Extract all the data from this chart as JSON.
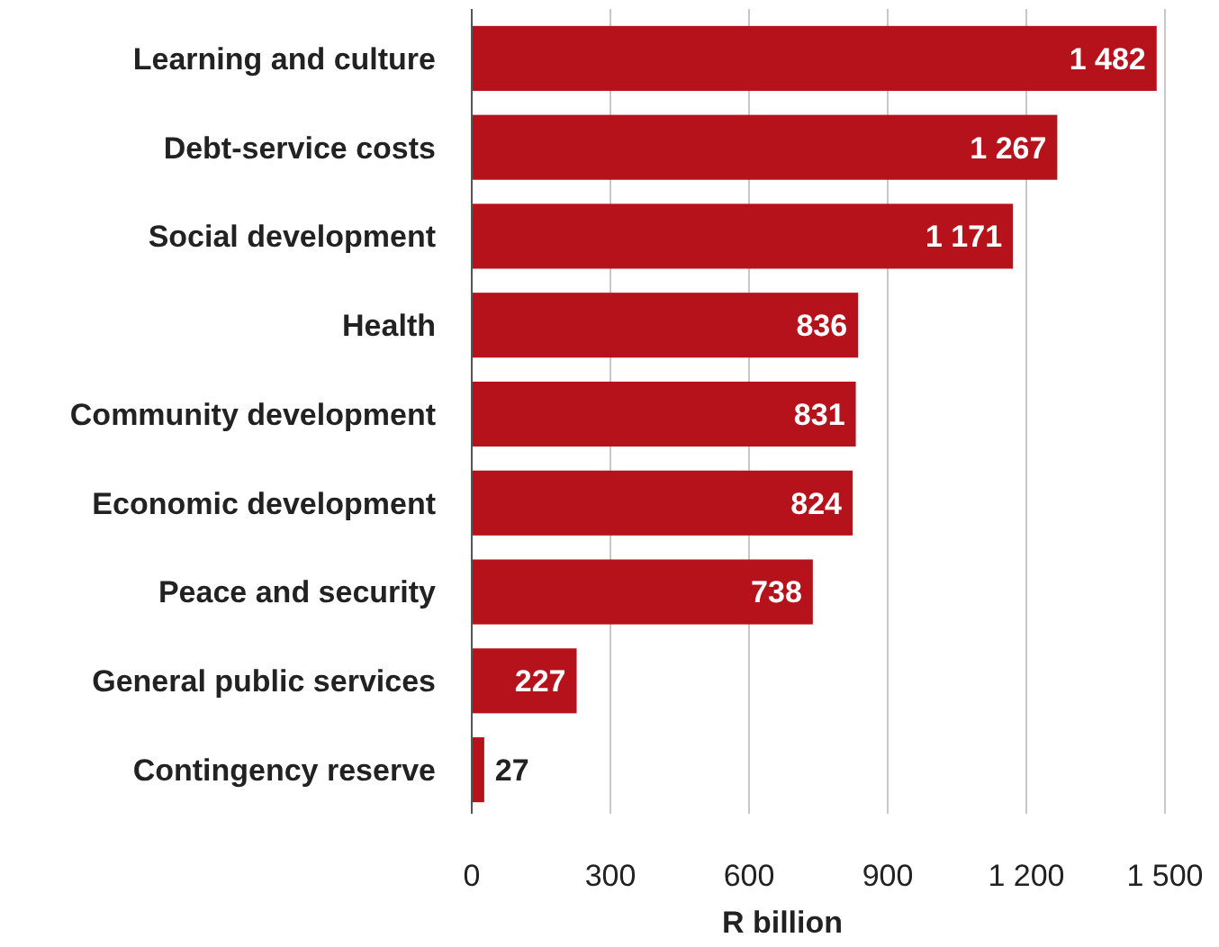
{
  "chart_data": {
    "type": "bar",
    "orientation": "horizontal",
    "xlabel": "R billion",
    "categories": [
      "Learning and culture",
      "Debt-service costs",
      "Social development",
      "Health",
      "Community development",
      "Economic development",
      "Peace and security",
      "General public services",
      "Contingency reserve"
    ],
    "values": [
      1482,
      1267,
      1171,
      836,
      831,
      824,
      738,
      227,
      27
    ],
    "value_labels": [
      "1 482",
      "1 267",
      "1 171",
      "836",
      "831",
      "824",
      "738",
      "227",
      "27"
    ],
    "color": "#b5121b",
    "xlim": [
      0,
      1500
    ],
    "xticks": [
      0,
      300,
      600,
      900,
      {
        "value": 1200,
        "label": "1 200"
      },
      {
        "value": 1500,
        "label": "1 500"
      }
    ],
    "grid": "x"
  }
}
